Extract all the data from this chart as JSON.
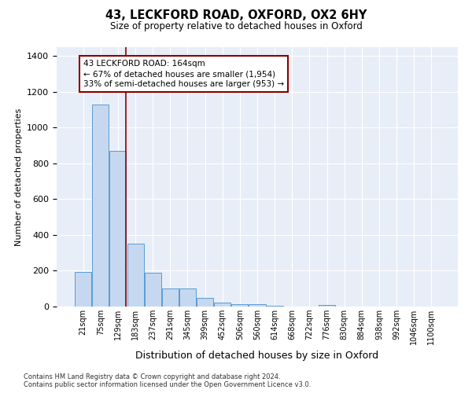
{
  "title": "43, LECKFORD ROAD, OXFORD, OX2 6HY",
  "subtitle": "Size of property relative to detached houses in Oxford",
  "xlabel": "Distribution of detached houses by size in Oxford",
  "ylabel": "Number of detached properties",
  "bar_color": "#c5d8f0",
  "bar_edge_color": "#5b9bd5",
  "background_color": "#e8eef7",
  "categories": [
    "21sqm",
    "75sqm",
    "129sqm",
    "183sqm",
    "237sqm",
    "291sqm",
    "345sqm",
    "399sqm",
    "452sqm",
    "506sqm",
    "560sqm",
    "614sqm",
    "668sqm",
    "722sqm",
    "776sqm",
    "830sqm",
    "884sqm",
    "938sqm",
    "992sqm",
    "1046sqm",
    "1100sqm"
  ],
  "values": [
    195,
    1130,
    870,
    350,
    190,
    100,
    100,
    50,
    20,
    15,
    15,
    5,
    0,
    0,
    10,
    0,
    0,
    0,
    0,
    0,
    0
  ],
  "ylim": [
    0,
    1450
  ],
  "yticks": [
    0,
    200,
    400,
    600,
    800,
    1000,
    1200,
    1400
  ],
  "property_line_x": 2.45,
  "annotation_text": "43 LECKFORD ROAD: 164sqm\n← 67% of detached houses are smaller (1,954)\n33% of semi-detached houses are larger (953) →",
  "footnote_line1": "Contains HM Land Registry data © Crown copyright and database right 2024.",
  "footnote_line2": "Contains public sector information licensed under the Open Government Licence v3.0."
}
